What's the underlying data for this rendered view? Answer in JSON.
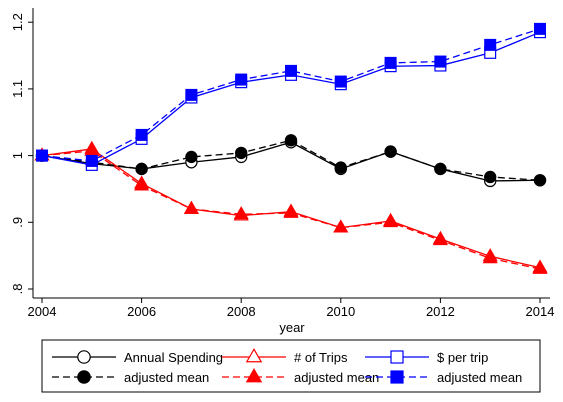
{
  "chart_data": {
    "type": "line",
    "title": "",
    "xlabel": "year",
    "ylabel": "",
    "xlim": [
      2004,
      2014
    ],
    "ylim": [
      0.78,
      1.2
    ],
    "x": [
      2004,
      2005,
      2006,
      2007,
      2008,
      2009,
      2010,
      2011,
      2012,
      2013,
      2014
    ],
    "x_ticks": [
      "2004",
      "2006",
      "2008",
      "2010",
      "2012",
      "2014"
    ],
    "x_tick_values": [
      2004,
      2006,
      2008,
      2010,
      2012,
      2014
    ],
    "y_ticks": [
      ".8",
      ".9",
      "1",
      "1.1",
      "1.2"
    ],
    "y_tick_values": [
      0.8,
      0.9,
      1.0,
      1.1,
      1.2
    ],
    "grid": false,
    "legend_position": "bottom",
    "series": [
      {
        "name": "Annual Spending",
        "color": "#000000",
        "dash": "solid",
        "marker": "circle-open",
        "values": [
          1.0,
          0.988,
          0.98,
          0.99,
          0.998,
          1.02,
          0.98,
          1.006,
          0.98,
          0.962,
          0.963
        ]
      },
      {
        "name": "adjusted mean",
        "color": "#000000",
        "dash": "dashed",
        "marker": "circle-filled",
        "values": [
          1.0,
          0.99,
          0.98,
          0.998,
          1.004,
          1.023,
          0.982,
          1.006,
          0.98,
          0.968,
          0.963
        ]
      },
      {
        "name": "# of Trips",
        "color": "#ff0000",
        "dash": "solid",
        "marker": "triangle-open",
        "values": [
          1.0,
          1.01,
          0.958,
          0.92,
          0.91,
          0.916,
          0.892,
          0.902,
          0.875,
          0.849,
          0.832
        ]
      },
      {
        "name": "adjusted mean",
        "color": "#ff0000",
        "dash": "dashed",
        "marker": "triangle-filled",
        "values": [
          1.0,
          1.007,
          0.955,
          0.92,
          0.912,
          0.914,
          0.892,
          0.9,
          0.873,
          0.846,
          0.83
        ]
      },
      {
        "name": "$ per trip",
        "color": "#0000ff",
        "dash": "solid",
        "marker": "square-open",
        "values": [
          1.0,
          0.986,
          1.025,
          1.087,
          1.11,
          1.121,
          1.107,
          1.134,
          1.135,
          1.154,
          1.185
        ]
      },
      {
        "name": "adjusted mean",
        "color": "#0000ff",
        "dash": "dashed",
        "marker": "square-filled",
        "values": [
          1.0,
          0.992,
          1.031,
          1.091,
          1.114,
          1.127,
          1.111,
          1.139,
          1.141,
          1.166,
          1.19
        ]
      }
    ]
  }
}
